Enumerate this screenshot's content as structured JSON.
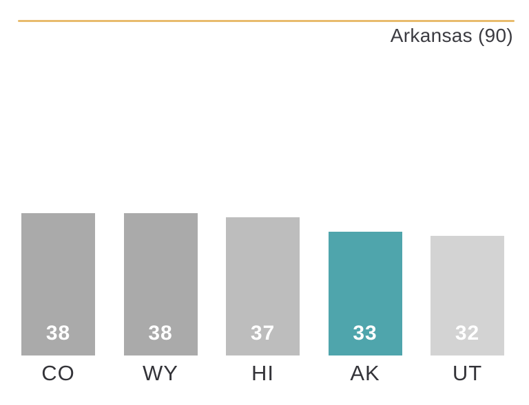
{
  "header": {
    "title": "Arkansas (90)"
  },
  "chart_data": {
    "type": "bar",
    "title": "Arkansas (90)",
    "categories": [
      "CO",
      "WY",
      "HI",
      "AK",
      "UT"
    ],
    "values": [
      38,
      38,
      37,
      33,
      32
    ],
    "bar_colors": [
      "#aaaaaa",
      "#aaaaaa",
      "#bdbdbd",
      "#4fa5ac",
      "#d3d3d3"
    ],
    "highlighted_category": "AK",
    "highlight_color": "#4fa5ac",
    "accent_line_color": "#e8bb6c",
    "value_label_color": "#ffffff",
    "category_label_color": "#333338",
    "xlabel": "",
    "ylabel": "",
    "legend": false,
    "grid": false,
    "axes_hidden": true
  }
}
